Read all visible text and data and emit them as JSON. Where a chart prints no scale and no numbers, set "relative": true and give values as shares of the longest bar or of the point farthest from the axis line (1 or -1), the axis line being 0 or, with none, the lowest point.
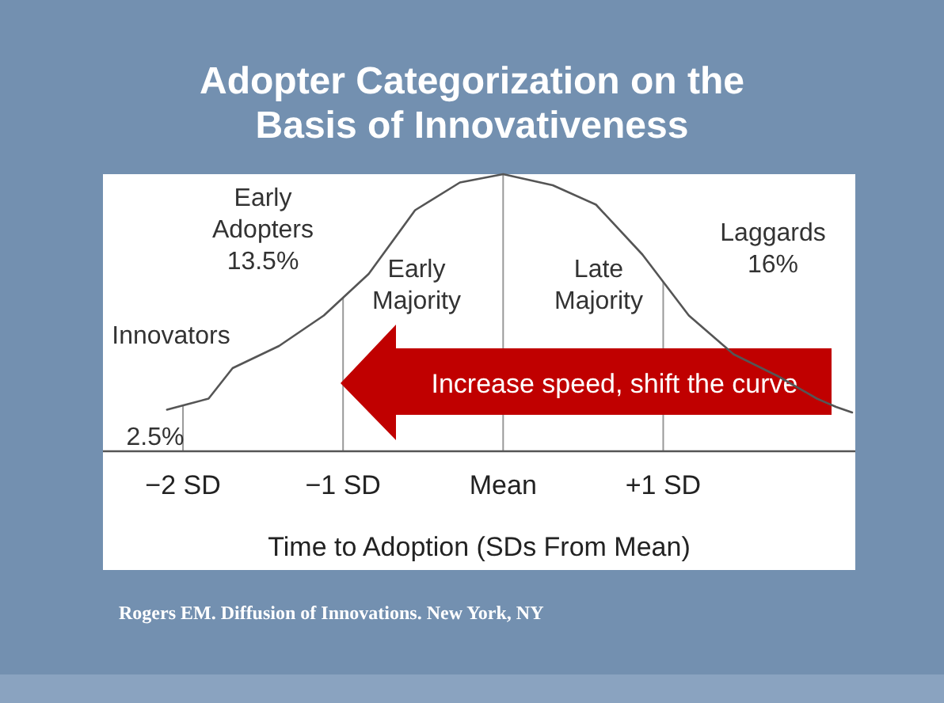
{
  "chart_data": {
    "type": "line",
    "relative": true,
    "title": "Adopter Categorization on the\nBasis of Innovativeness",
    "xlabel": "Time to Adoption (SDs From Mean)",
    "x": [
      -2.1,
      -1.84,
      -1.69,
      -1.4,
      -1.12,
      -0.84,
      -0.55,
      -0.27,
      0,
      0.31,
      0.58,
      0.87,
      1.16,
      1.44,
      1.72,
      1.96,
      2.08,
      2.18
    ],
    "series": [
      {
        "color": "#555555",
        "values": [
          0.15,
          0.19,
          0.3,
          0.38,
          0.49,
          0.64,
          0.87,
          0.97,
          1,
          0.96,
          0.89,
          0.71,
          0.49,
          0.35,
          0.27,
          0.19,
          0.16,
          0.14
        ]
      }
    ],
    "xlim": [
      -2.5,
      2.2
    ],
    "xticks": [
      {
        "value": -2,
        "label": "−2 SD"
      },
      {
        "value": -1,
        "label": "−1 SD"
      },
      {
        "value": 0,
        "label": "Mean"
      },
      {
        "value": 1,
        "label": "+1 SD"
      }
    ],
    "grid": "x",
    "marker": "none",
    "line_style": "solid",
    "annotations": [
      "Early\nAdopters\n13.5%",
      "Innovators",
      "2.5%",
      "Early\nMajority",
      "Late\nMajority",
      "Laggards\n16%",
      "Increase speed, shift the curve",
      "Rogers EM. Diffusion of Innovations. New York, NY"
    ]
  }
}
